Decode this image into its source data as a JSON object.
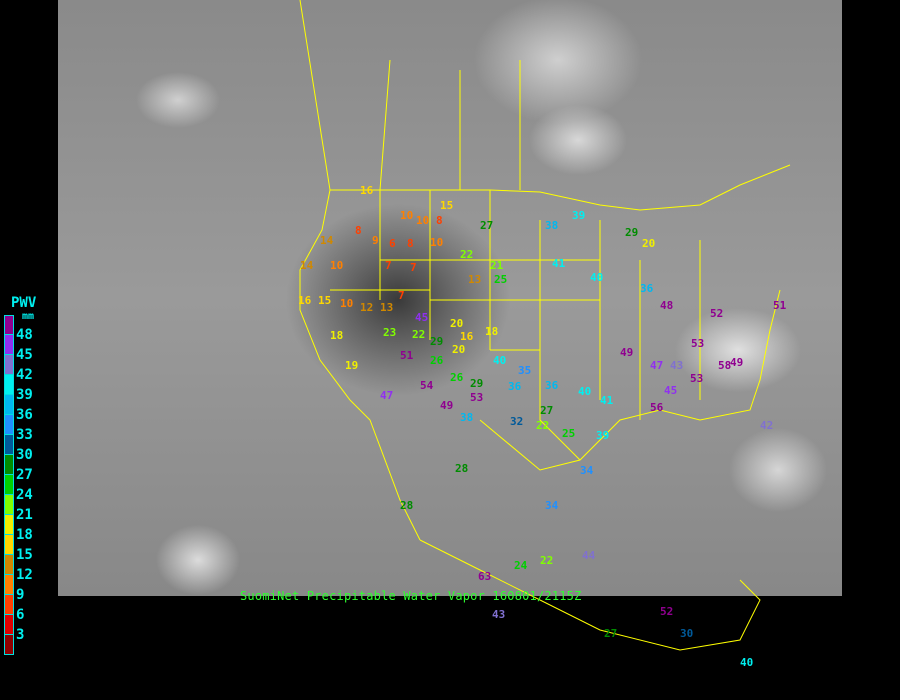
{
  "caption": "SuomiNet Precipitable Water Vapor 160801/2115Z",
  "legend": {
    "title": "PWV",
    "unit": "mm",
    "labels": [
      "48",
      "45",
      "42",
      "39",
      "36",
      "33",
      "30",
      "27",
      "24",
      "21",
      "18",
      "15",
      "12",
      "9",
      "6",
      "3"
    ],
    "colors": [
      "#900090",
      "#9030f0",
      "#8070d0",
      "#00f0f0",
      "#00b8f0",
      "#2090ff",
      "#005a9a",
      "#008c00",
      "#00d000",
      "#80ff00",
      "#f0f000",
      "#ffd800",
      "#d08800",
      "#ff8000",
      "#ff4000",
      "#e00000",
      "#900000"
    ]
  },
  "border_color": "#ffff00",
  "stations": [
    "16",
    "10",
    "10",
    "8",
    "15",
    "27",
    "14",
    "8",
    "9",
    "6",
    "8",
    "10",
    "22",
    "38",
    "39",
    "29",
    "20",
    "21",
    "14",
    "10",
    "7",
    "7",
    "13",
    "25",
    "41",
    "40",
    "36",
    "48",
    "16",
    "15",
    "10",
    "12",
    "13",
    "7",
    "20",
    "16",
    "18",
    "52",
    "51",
    "18",
    "23",
    "22",
    "29",
    "20",
    "40",
    "35",
    "49",
    "58",
    "19",
    "26",
    "26",
    "29",
    "36",
    "36",
    "40",
    "47",
    "43",
    "53",
    "49",
    "28",
    "34",
    "27",
    "22",
    "25",
    "39",
    "42",
    "53",
    "45",
    "28",
    "34",
    "24",
    "22",
    "44",
    "63",
    "43",
    "52",
    "27",
    "30",
    "40",
    "49",
    "38",
    "53",
    "47",
    "54",
    "51",
    "45",
    "41",
    "56",
    "32"
  ]
}
